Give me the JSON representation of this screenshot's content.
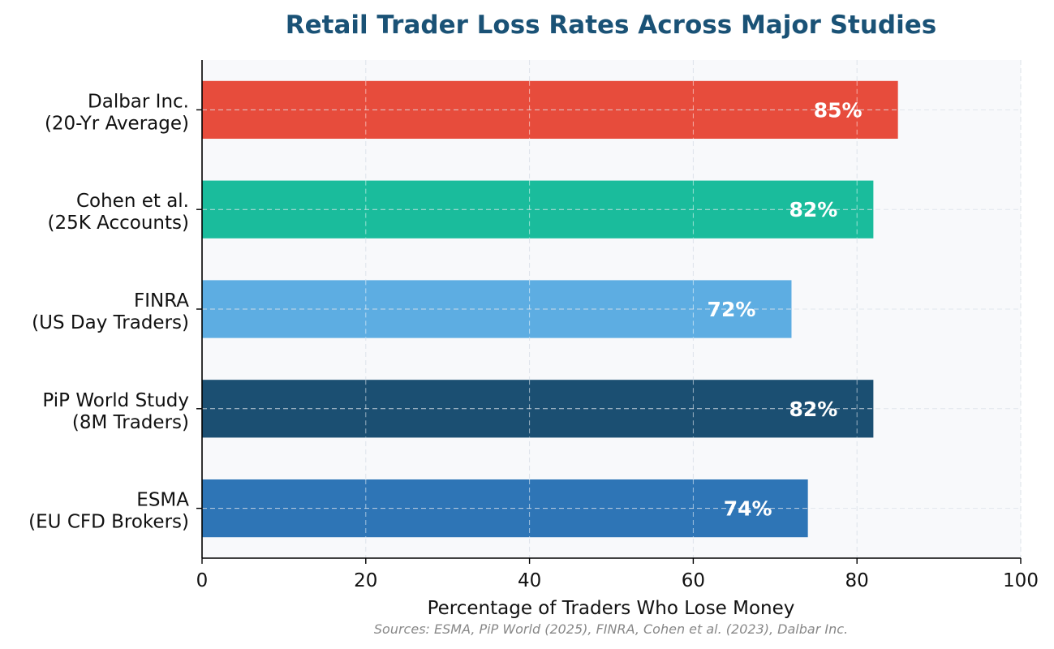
{
  "chart_data": {
    "type": "bar",
    "orientation": "horizontal",
    "title": "Retail Trader Loss Rates Across Major Studies",
    "xlabel": "Percentage of Traders Who Lose Money",
    "source": "Sources: ESMA, PiP World (2025), FINRA, Cohen et al. (2023), Dalbar Inc.",
    "xlim": [
      0,
      100
    ],
    "xticks": [
      "0",
      "20",
      "40",
      "60",
      "80",
      "100"
    ],
    "grid": true,
    "categories": [
      {
        "line1": "Dalbar Inc.",
        "line2": "(20-Yr Average)"
      },
      {
        "line1": "Cohen et al.",
        "line2": "(25K Accounts)"
      },
      {
        "line1": "FINRA",
        "line2": "(US Day Traders)"
      },
      {
        "line1": "PiP World Study",
        "line2": "(8M Traders)"
      },
      {
        "line1": "ESMA",
        "line2": "(EU CFD Brokers)"
      }
    ],
    "values": [
      85,
      82,
      72,
      82,
      74
    ],
    "value_labels": [
      "85%",
      "82%",
      "72%",
      "82%",
      "74%"
    ],
    "colors": [
      "#e74c3c",
      "#1abc9c",
      "#5dade2",
      "#1b4f72",
      "#2e75b6"
    ],
    "title_color": "#1a5276",
    "plot_background": "#f8f9fb"
  }
}
